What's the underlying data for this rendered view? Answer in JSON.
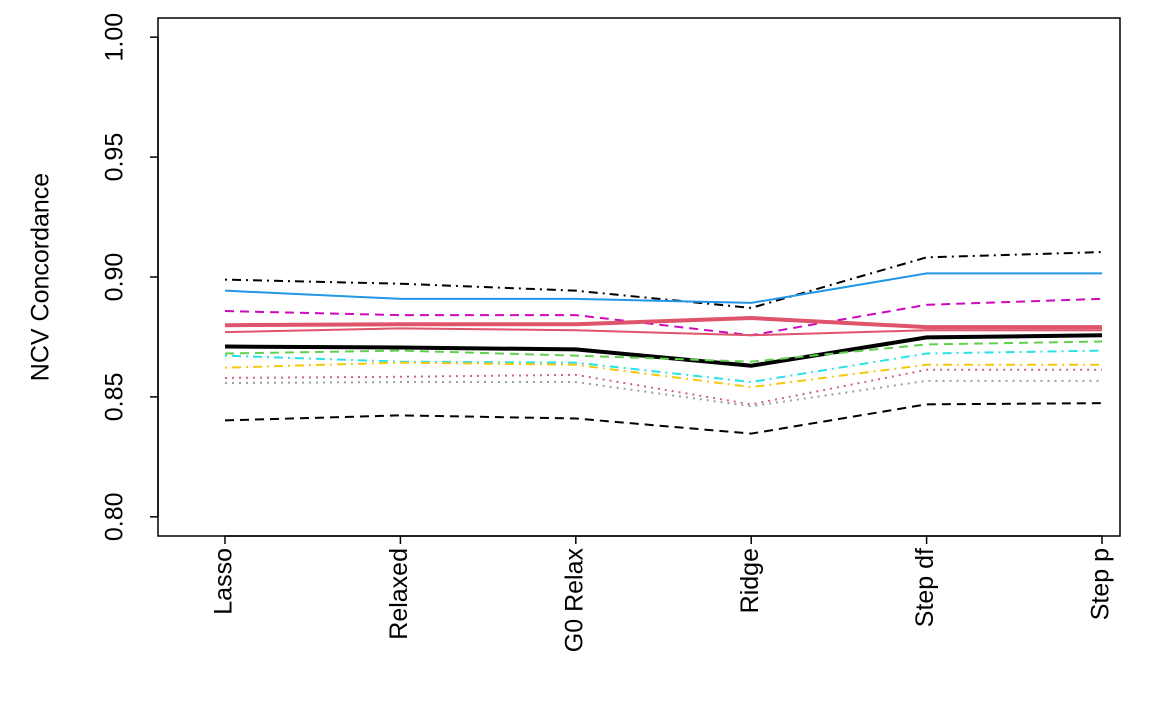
{
  "chart_data": {
    "type": "line",
    "y_label": "NCV Concordance",
    "categories": [
      "Lasso",
      "Relaxed",
      "G0 Relax",
      "Ridge",
      "Step df",
      "Step p"
    ],
    "ylim": [
      0.792,
      1.008
    ],
    "yticks": [
      {
        "value": 0.8,
        "label": "0.80"
      },
      0.85,
      {
        "value": 0.9,
        "label": "0.90"
      },
      0.95,
      {
        "value": 1,
        "label": "1.00"
      }
    ],
    "series": [
      {
        "color": "#000000",
        "dash": "dotdash",
        "width": 1,
        "values": [
          0.8989,
          0.8972,
          0.8943,
          0.8871,
          0.9082,
          0.9104
        ]
      },
      {
        "color": "#2297E6",
        "dash": "solid",
        "width": 1,
        "values": [
          0.8943,
          0.8909,
          0.8909,
          0.8892,
          0.9015,
          0.9015
        ]
      },
      {
        "color": "#CD0BBC",
        "dash": "dashed",
        "width": 1,
        "values": [
          0.8858,
          0.8841,
          0.8841,
          0.8757,
          0.8884,
          0.8909
        ]
      },
      {
        "color": "#DF536B",
        "dash": "solid",
        "width": 2,
        "values": [
          0.8799,
          0.8803,
          0.8803,
          0.8829,
          0.8791,
          0.8791
        ]
      },
      {
        "color": "#DF536B",
        "dash": "solid",
        "width": 1,
        "values": [
          0.877,
          0.8786,
          0.8778,
          0.8757,
          0.8778,
          0.8778
        ]
      },
      {
        "color": "#000000",
        "dash": "solid",
        "width": 2,
        "values": [
          0.871,
          0.8706,
          0.8698,
          0.863,
          0.8748,
          0.8757
        ]
      },
      {
        "color": "#61D04F",
        "dash": "dashed",
        "width": 1,
        "values": [
          0.8681,
          0.8693,
          0.8672,
          0.8647,
          0.8719,
          0.8731
        ]
      },
      {
        "color": "#28E2E5",
        "dash": "dotdash",
        "width": 1,
        "values": [
          0.8672,
          0.8647,
          0.8643,
          0.8562,
          0.8681,
          0.8693
        ]
      },
      {
        "color": "#F5C710",
        "dash": "dotdash",
        "width": 1,
        "values": [
          0.8622,
          0.8643,
          0.8634,
          0.8541,
          0.8634,
          0.8634
        ]
      },
      {
        "color": "#CD6090",
        "dash": "dotted",
        "width": 1,
        "values": [
          0.8579,
          0.8584,
          0.8592,
          0.8469,
          0.8613,
          0.8613
        ]
      },
      {
        "color": "#9E9E9E",
        "dash": "dotted",
        "width": 1,
        "values": [
          0.8558,
          0.8562,
          0.8562,
          0.8461,
          0.8567,
          0.8567
        ]
      },
      {
        "color": "#000000",
        "dash": "dashed",
        "width": 1,
        "values": [
          0.8402,
          0.8423,
          0.841,
          0.8347,
          0.8469,
          0.8474
        ]
      }
    ]
  }
}
